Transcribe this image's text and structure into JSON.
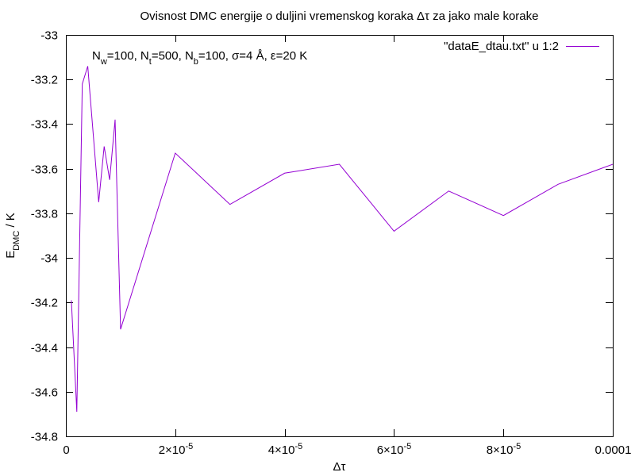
{
  "chart_data": {
    "type": "line",
    "title": "Ovisnost DMC energije o duljini vremenskog koraka Δτ za jako male korake",
    "xlabel": "Δτ",
    "ylabel": {
      "main": "E",
      "sub": "DMC",
      "rest": " / K"
    },
    "xlim": [
      0,
      0.0001
    ],
    "ylim": [
      -34.8,
      -33
    ],
    "grid": false,
    "legend_position": "top-right",
    "xticks": [
      {
        "value": 0,
        "label": "0"
      },
      {
        "value": 2e-05,
        "label": "2×10",
        "exp": "-5"
      },
      {
        "value": 4e-05,
        "label": "4×10",
        "exp": "-5"
      },
      {
        "value": 6e-05,
        "label": "6×10",
        "exp": "-5"
      },
      {
        "value": 8e-05,
        "label": "8×10",
        "exp": "-5"
      },
      {
        "value": 0.0001,
        "label": "0.0001"
      }
    ],
    "yticks": [
      "-33",
      "-33.2",
      "-33.4",
      "-33.6",
      "-33.8",
      "-34",
      "-34.2",
      "-34.4",
      "-34.6",
      "-34.8"
    ],
    "annotation": [
      "N",
      "w",
      "=100, N",
      "t",
      "=500, N",
      "b",
      "=100, σ=4 Å, ε=20 K"
    ],
    "series": [
      {
        "name": "\"dataE_dtau.txt\" u 1:2",
        "color": "#9400D3",
        "x": [
          1e-06,
          2e-06,
          3e-06,
          4e-06,
          6e-06,
          7e-06,
          8e-06,
          9e-06,
          1e-05,
          2e-05,
          3e-05,
          4e-05,
          5e-05,
          6e-05,
          7e-05,
          8e-05,
          9e-05,
          0.0001
        ],
        "y": [
          -34.19,
          -34.69,
          -33.22,
          -33.14,
          -33.75,
          -33.5,
          -33.65,
          -33.38,
          -34.32,
          -33.53,
          -33.76,
          -33.62,
          -33.58,
          -33.88,
          -33.7,
          -33.81,
          -33.67,
          -33.58
        ]
      }
    ]
  }
}
